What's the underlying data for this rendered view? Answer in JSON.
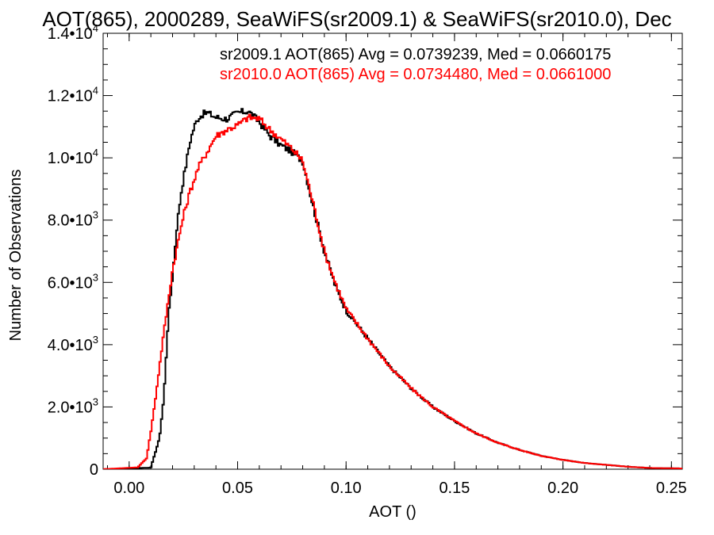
{
  "chart_data": {
    "type": "line",
    "title": "AOT(865), 2000289, SeaWiFS(sr2009.1) & SeaWiFS(sr2010.0), Dec",
    "xlabel": "AOT ()",
    "ylabel": "Number of Observations",
    "xlim": [
      -0.012,
      0.255
    ],
    "ylim": [
      0,
      14000
    ],
    "grid": false,
    "legend_position": "top-right",
    "x_tick_labels": [
      {
        "value": 0.0,
        "label": "0.00"
      },
      {
        "value": 0.05,
        "label": "0.05"
      },
      {
        "value": 0.1,
        "label": "0.10"
      },
      {
        "value": 0.15,
        "label": "0.15"
      },
      {
        "value": 0.2,
        "label": "0.20"
      },
      {
        "value": 0.25,
        "label": "0.25"
      }
    ],
    "y_tick_labels": [
      {
        "value": 0,
        "mantissa": "0",
        "exponent": ""
      },
      {
        "value": 2000,
        "mantissa": "2.0",
        "exponent": "3"
      },
      {
        "value": 4000,
        "mantissa": "4.0",
        "exponent": "3"
      },
      {
        "value": 6000,
        "mantissa": "6.0",
        "exponent": "3"
      },
      {
        "value": 8000,
        "mantissa": "8.0",
        "exponent": "3"
      },
      {
        "value": 10000,
        "mantissa": "1.0",
        "exponent": "4"
      },
      {
        "value": 12000,
        "mantissa": "1.2",
        "exponent": "4"
      },
      {
        "value": 14000,
        "mantissa": "1.4",
        "exponent": "4"
      }
    ],
    "series": [
      {
        "legend": "sr2009.1 AOT(865) Avg = 0.0739239, Med = 0.0660175",
        "color": "#000000",
        "x": [
          -0.012,
          0.01,
          0.014,
          0.016,
          0.018,
          0.02,
          0.022,
          0.024,
          0.026,
          0.028,
          0.03,
          0.032,
          0.034,
          0.036,
          0.04,
          0.045,
          0.05,
          0.055,
          0.06,
          0.065,
          0.07,
          0.075,
          0.08,
          0.085,
          0.09,
          0.095,
          0.1,
          0.11,
          0.12,
          0.13,
          0.14,
          0.15,
          0.16,
          0.17,
          0.18,
          0.19,
          0.2,
          0.21,
          0.22,
          0.23,
          0.24,
          0.255
        ],
        "y": [
          0,
          50,
          1000,
          2300,
          4800,
          6200,
          7800,
          8900,
          9700,
          10500,
          11000,
          11300,
          11400,
          11450,
          11300,
          11250,
          11450,
          11500,
          11150,
          10700,
          10400,
          10200,
          9900,
          8400,
          7000,
          5900,
          5100,
          4200,
          3300,
          2600,
          2000,
          1550,
          1150,
          850,
          620,
          430,
          300,
          200,
          140,
          80,
          40,
          25
        ]
      },
      {
        "legend": "sr2010.0 AOT(865) Avg = 0.0734480, Med = 0.0661000",
        "color": "#ff0000",
        "x": [
          -0.012,
          0.004,
          0.008,
          0.01,
          0.012,
          0.014,
          0.016,
          0.018,
          0.02,
          0.022,
          0.024,
          0.026,
          0.028,
          0.03,
          0.032,
          0.036,
          0.04,
          0.045,
          0.05,
          0.055,
          0.06,
          0.065,
          0.07,
          0.075,
          0.08,
          0.085,
          0.09,
          0.095,
          0.1,
          0.11,
          0.12,
          0.13,
          0.14,
          0.15,
          0.16,
          0.17,
          0.18,
          0.19,
          0.2,
          0.21,
          0.22,
          0.23,
          0.24,
          0.255
        ],
        "y": [
          0,
          60,
          350,
          1200,
          2200,
          3300,
          4400,
          5400,
          6400,
          7100,
          7800,
          8400,
          8900,
          9300,
          9700,
          10200,
          10700,
          10900,
          11050,
          11300,
          11250,
          10900,
          10600,
          10300,
          9900,
          8500,
          7000,
          6000,
          5150,
          4200,
          3300,
          2600,
          2000,
          1550,
          1150,
          850,
          620,
          430,
          300,
          200,
          140,
          80,
          40,
          25
        ]
      }
    ]
  }
}
